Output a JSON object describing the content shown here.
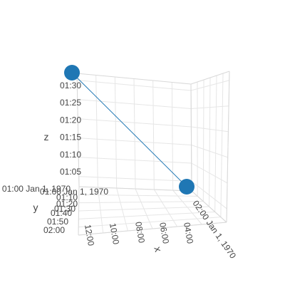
{
  "chart_data": {
    "type": "scatter3d",
    "mode": "lines+markers",
    "marker_color": "#1f77b4",
    "line_color": "#1f77b4",
    "points": [
      {
        "x": "01:00 Jan 1, 1970",
        "y": "01:00 Jan 1, 1970",
        "z": "01:32"
      },
      {
        "x": "02:00 Jan 1, 1970",
        "y": "01:00 Jan 1, 1970",
        "z": "01:00"
      }
    ],
    "x_axis": {
      "title": "x",
      "tick_labels": [
        "12:00",
        "10:00",
        "08:00",
        "06:00",
        "04:00",
        "02:00 Jan 1, 1970"
      ]
    },
    "y_axis": {
      "title": "y",
      "tick_labels": [
        "01:00 Jan 1, 1970",
        "01:10",
        "01:20",
        "01:30",
        "01:40",
        "01:50",
        "02:00"
      ],
      "extra_label": "01:00 Jan 1, 1970"
    },
    "z_axis": {
      "title": "z",
      "tick_labels": [
        "01:05",
        "01:10",
        "01:15",
        "01:20",
        "01:25",
        "01:30"
      ]
    }
  }
}
